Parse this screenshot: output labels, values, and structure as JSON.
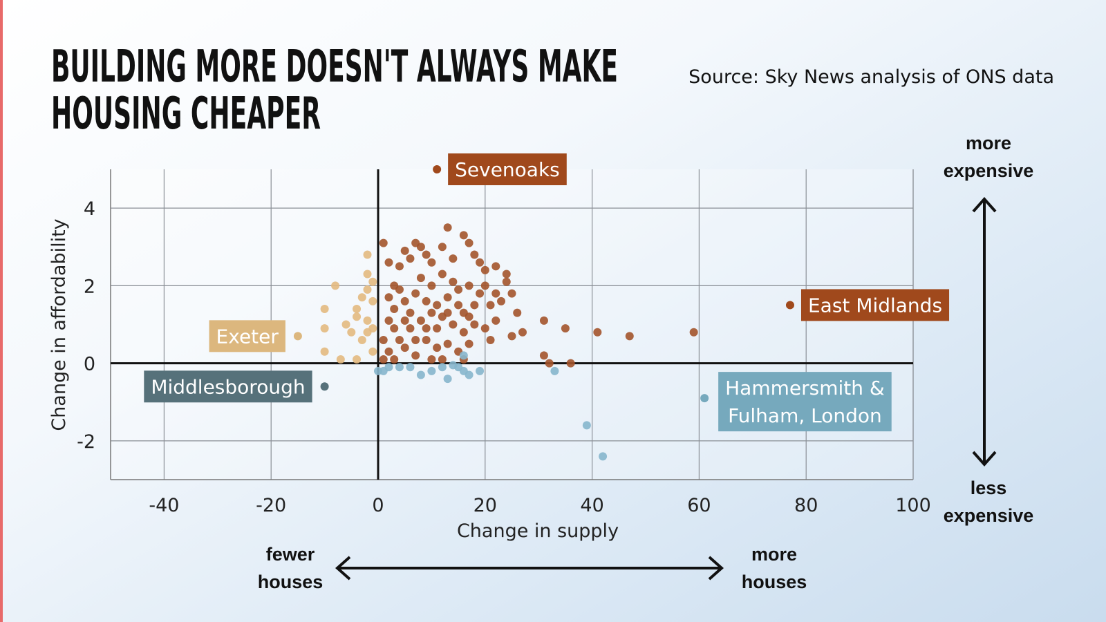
{
  "chart_data": {
    "type": "scatter",
    "title": [
      "BUILDING MORE DOESN'T ALWAYS MAKE",
      "HOUSING CHEAPER"
    ],
    "source": "Source: Sky News analysis of ONS data",
    "xlabel": "Change in supply",
    "ylabel": "Change in affordability",
    "xlim": [
      -50,
      100
    ],
    "ylim": [
      -3,
      5
    ],
    "xticks": [
      -40,
      -20,
      0,
      20,
      40,
      60,
      80,
      100
    ],
    "yticks": [
      -2,
      0,
      2,
      4
    ],
    "grid": true,
    "annotations": {
      "up": "more expensive",
      "down": "less expensive",
      "left": "fewer houses",
      "right": "more houses"
    },
    "series": [
      {
        "color": "#a3542b",
        "x": [
          1,
          2,
          3,
          4,
          5,
          6,
          7,
          8,
          9,
          10,
          12,
          13,
          14,
          16,
          17,
          18,
          19,
          20,
          22,
          24,
          24,
          25,
          23,
          21,
          19,
          17,
          15,
          13,
          11,
          9,
          7,
          5,
          3,
          2,
          1,
          2,
          4,
          6,
          8,
          10,
          12,
          14,
          16,
          18,
          20,
          22,
          26,
          27,
          31,
          35,
          41,
          47,
          59,
          31,
          32,
          36,
          25,
          21,
          17,
          15,
          13,
          11,
          9,
          7,
          5,
          3,
          1,
          6,
          8,
          10,
          12,
          14,
          4,
          2,
          18,
          16,
          20,
          9,
          11,
          13,
          15,
          17,
          22,
          3,
          5,
          10,
          7,
          12,
          16
        ],
        "y": [
          3.1,
          2.6,
          2.0,
          2.5,
          2.9,
          2.7,
          3.1,
          3.0,
          2.8,
          2.6,
          3.0,
          3.5,
          2.7,
          3.3,
          3.1,
          2.8,
          2.6,
          2.4,
          2.5,
          2.3,
          2.1,
          1.8,
          1.6,
          1.5,
          1.8,
          2.0,
          1.9,
          1.7,
          1.5,
          1.6,
          1.8,
          1.6,
          1.4,
          1.1,
          0.6,
          0.3,
          0.6,
          0.9,
          1.1,
          1.3,
          1.2,
          1.0,
          1.3,
          1.0,
          0.9,
          1.1,
          1.3,
          0.8,
          1.1,
          0.9,
          0.8,
          0.7,
          0.8,
          0.2,
          0.0,
          0.0,
          0.7,
          0.6,
          0.5,
          0.3,
          0.5,
          0.4,
          0.6,
          0.2,
          0.4,
          0.1,
          0.1,
          1.3,
          2.2,
          2.0,
          2.3,
          2.1,
          1.9,
          1.7,
          1.5,
          0.8,
          2.0,
          0.9,
          0.9,
          1.3,
          1.5,
          1.2,
          1.8,
          0.9,
          1.1,
          0.1,
          0.6,
          0.1,
          0.1
        ]
      },
      {
        "color": "#e3b97f",
        "x": [
          -2,
          -2,
          -8,
          -10,
          -6,
          -4,
          -3,
          -2,
          -1,
          -2,
          -1,
          -5,
          -10,
          -10,
          -7,
          -4,
          -1,
          -3,
          -2,
          -4,
          -1
        ],
        "y": [
          2.8,
          2.3,
          2.0,
          1.4,
          1.0,
          1.4,
          1.7,
          1.9,
          1.6,
          1.1,
          0.9,
          0.8,
          0.9,
          0.3,
          0.1,
          0.1,
          0.3,
          0.6,
          0.8,
          1.2,
          2.1
        ]
      },
      {
        "color": "#86b6cc",
        "x": [
          0,
          1,
          2,
          4,
          6,
          8,
          10,
          12,
          13,
          15,
          16,
          17,
          19,
          33,
          39,
          42,
          16,
          14
        ],
        "y": [
          -0.2,
          -0.2,
          -0.1,
          -0.1,
          -0.1,
          -0.3,
          -0.2,
          -0.1,
          -0.4,
          -0.1,
          -0.2,
          -0.3,
          -0.2,
          -0.2,
          -1.6,
          -2.4,
          0.2,
          -0.05
        ]
      }
    ],
    "labels": [
      {
        "lines": [
          "Sevenoaks"
        ],
        "x": 11,
        "y": 5,
        "color": "#a0491c",
        "text_color": "#ffffff"
      },
      {
        "lines": [
          "East Midlands"
        ],
        "x": 77,
        "y": 1.5,
        "color": "#a0491c",
        "text_color": "#ffffff"
      },
      {
        "lines": [
          "Exeter"
        ],
        "x": -15,
        "y": 0.7,
        "color": "#dcb77e",
        "text_color": "#ffffff"
      },
      {
        "lines": [
          "Middlesborough"
        ],
        "x": -10,
        "y": -0.6,
        "color": "#56717a",
        "text_color": "#ffffff"
      },
      {
        "lines": [
          "Hammersmith &",
          "Fulham, London"
        ],
        "x": 61,
        "y": -0.9,
        "color": "#76a9bd",
        "text_color": "#ffffff"
      }
    ]
  }
}
